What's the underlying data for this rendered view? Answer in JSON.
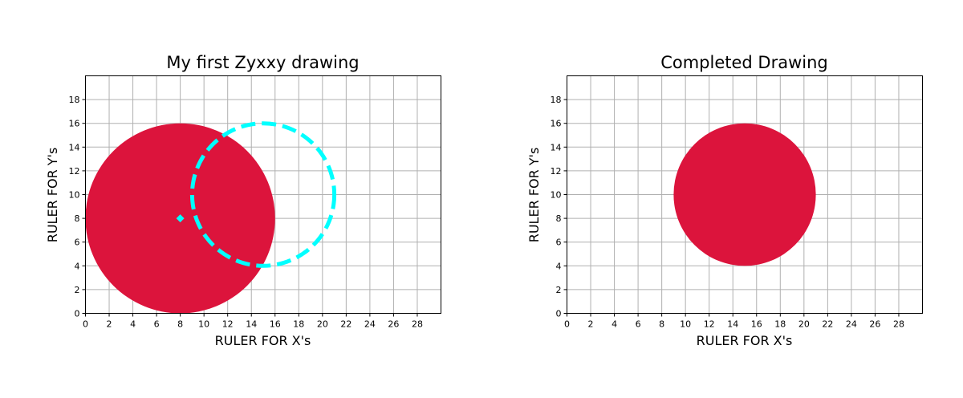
{
  "colors": {
    "fill": "#DC143C",
    "outline": "#00FFFF",
    "grid": "#b0b0b0"
  },
  "chart_data": [
    {
      "type": "scatter",
      "title": "My first Zyxxy drawing",
      "xlabel": "RULER FOR X's",
      "ylabel": "RULER FOR Y's",
      "xlim": [
        0,
        30
      ],
      "ylim": [
        0,
        20
      ],
      "xticks": [
        0,
        2,
        4,
        6,
        8,
        10,
        12,
        14,
        16,
        18,
        20,
        22,
        24,
        26,
        28
      ],
      "yticks": [
        0,
        2,
        4,
        6,
        8,
        10,
        12,
        14,
        16,
        18
      ],
      "xtick_labels": [
        "0",
        "2",
        "4",
        "6",
        "8",
        "10",
        "12",
        "14",
        "16",
        "18",
        "20",
        "22",
        "24",
        "26",
        "28"
      ],
      "ytick_labels": [
        "0",
        "2",
        "4",
        "6",
        "8",
        "10",
        "12",
        "14",
        "16",
        "18"
      ],
      "grid": true,
      "shapes": [
        {
          "kind": "filled-circle",
          "center": [
            8,
            8
          ],
          "radius": 8,
          "color": "#DC143C"
        },
        {
          "kind": "dashed-circle-outline",
          "center": [
            15,
            10
          ],
          "radius": 6,
          "color": "#00FFFF"
        },
        {
          "kind": "diamond-marker",
          "center": [
            8,
            8
          ],
          "color": "#00FFFF"
        }
      ]
    },
    {
      "type": "scatter",
      "title": "Completed Drawing",
      "xlabel": "RULER FOR X's",
      "ylabel": "RULER FOR Y's",
      "xlim": [
        0,
        30
      ],
      "ylim": [
        0,
        20
      ],
      "xticks": [
        0,
        2,
        4,
        6,
        8,
        10,
        12,
        14,
        16,
        18,
        20,
        22,
        24,
        26,
        28
      ],
      "yticks": [
        0,
        2,
        4,
        6,
        8,
        10,
        12,
        14,
        16,
        18
      ],
      "xtick_labels": [
        "0",
        "2",
        "4",
        "6",
        "8",
        "10",
        "12",
        "14",
        "16",
        "18",
        "20",
        "22",
        "24",
        "26",
        "28"
      ],
      "ytick_labels": [
        "0",
        "2",
        "4",
        "6",
        "8",
        "10",
        "12",
        "14",
        "16",
        "18"
      ],
      "grid": true,
      "shapes": [
        {
          "kind": "filled-circle",
          "center": [
            15,
            10
          ],
          "radius": 6,
          "color": "#DC143C"
        }
      ]
    }
  ]
}
